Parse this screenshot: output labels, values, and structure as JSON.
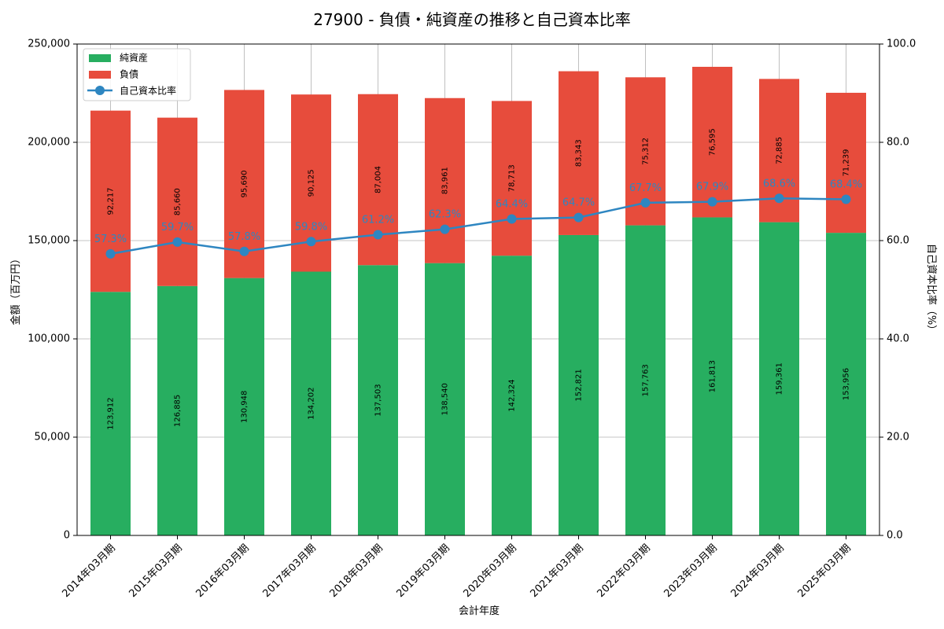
{
  "chart_data": {
    "type": "bar",
    "title": "27900 - 負債・純資産の推移と自己資本比率",
    "xlabel": "会計年度",
    "ylabel": "金額（百万円）",
    "y2label": "自己資本比率（%）",
    "ylim": [
      0,
      250000
    ],
    "y2lim": [
      0,
      100
    ],
    "yticks": [
      "0",
      "50,000",
      "100,000",
      "150,000",
      "200,000",
      "250,000"
    ],
    "y2ticks": [
      "0.0",
      "20.0",
      "40.0",
      "60.0",
      "80.0",
      "100.0"
    ],
    "grid": true,
    "legend_position": "top-left",
    "categories": [
      "2014年03月期",
      "2015年03月期",
      "2016年03月期",
      "2017年03月期",
      "2018年03月期",
      "2019年03月期",
      "2020年03月期",
      "2021年03月期",
      "2022年03月期",
      "2023年03月期",
      "2024年03月期",
      "2025年03月期"
    ],
    "series": [
      {
        "name": "純資産",
        "kind": "stacked-bar",
        "color": "#27ae60",
        "values": [
          123912,
          126885,
          130948,
          134202,
          137503,
          138540,
          142324,
          152821,
          157763,
          161813,
          159361,
          153956
        ],
        "labels": [
          "123,912",
          "126,885",
          "130,948",
          "134,202",
          "137,503",
          "138,540",
          "142,324",
          "152,821",
          "157,763",
          "161,813",
          "159,361",
          "153,956"
        ]
      },
      {
        "name": "負債",
        "kind": "stacked-bar",
        "color": "#e74c3c",
        "values": [
          92217,
          85660,
          95690,
          90125,
          87004,
          83961,
          78713,
          83343,
          75312,
          76595,
          72885,
          71239
        ],
        "labels": [
          "92,217",
          "85,660",
          "95,690",
          "90,125",
          "87,004",
          "83,961",
          "78,713",
          "83,343",
          "75,312",
          "76,595",
          "72,885",
          "71,239"
        ]
      },
      {
        "name": "自己資本比率",
        "kind": "line",
        "axis": "right",
        "color": "#2e86c1",
        "values": [
          57.3,
          59.7,
          57.8,
          59.8,
          61.2,
          62.3,
          64.4,
          64.7,
          67.7,
          67.9,
          68.6,
          68.4
        ],
        "labels": [
          "57.3%",
          "59.7%",
          "57.8%",
          "59.8%",
          "61.2%",
          "62.3%",
          "64.4%",
          "64.7%",
          "67.7%",
          "67.9%",
          "68.6%",
          "68.4%"
        ]
      }
    ]
  }
}
